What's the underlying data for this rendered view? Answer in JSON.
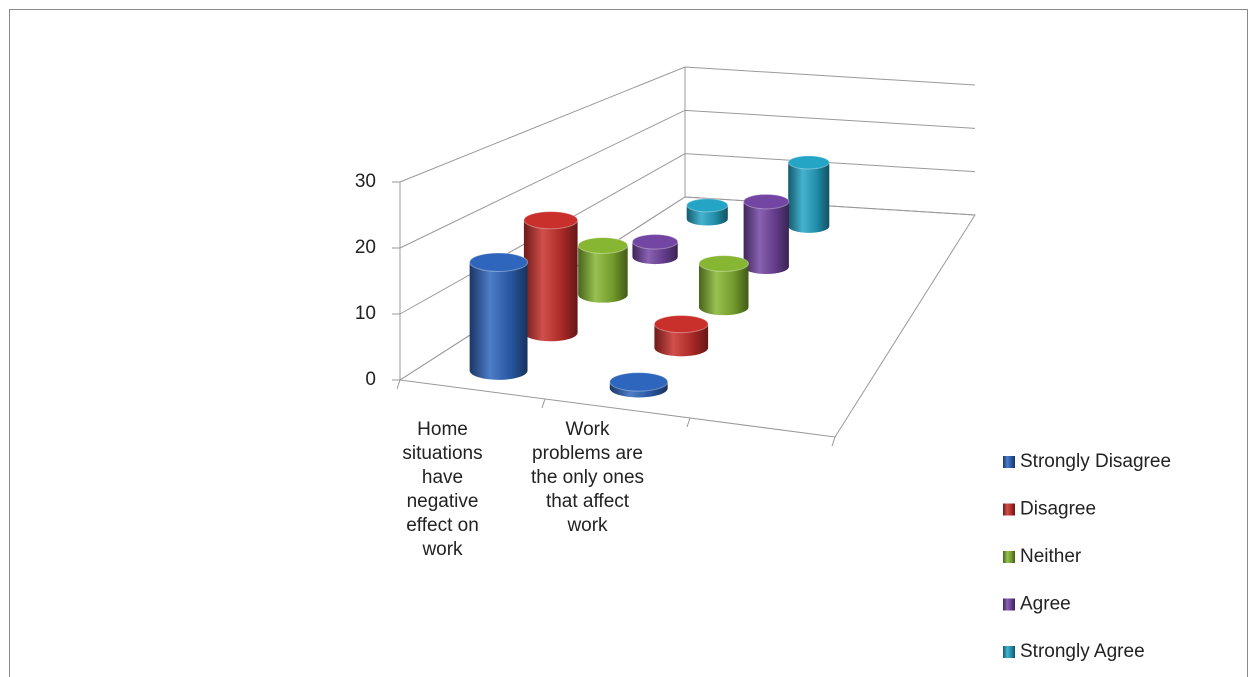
{
  "chart_data": {
    "type": "cylinder3d",
    "categories": [
      "Home situations have negative effect on work",
      "Work problems are the only ones that affect work",
      null
    ],
    "series": [
      {
        "name": "Strongly Disagree",
        "color": "#2f66bd",
        "values": [
          17,
          1,
          null
        ]
      },
      {
        "name": "Disagree",
        "color": "#c9302c",
        "values": [
          19,
          4,
          null
        ]
      },
      {
        "name": "Neither",
        "color": "#86b632",
        "values": [
          9,
          8,
          null
        ]
      },
      {
        "name": "Agree",
        "color": "#7446a4",
        "values": [
          3,
          13,
          null
        ]
      },
      {
        "name": "Strongly Agree",
        "color": "#25a5c6",
        "values": [
          3,
          14,
          null
        ]
      }
    ],
    "ylim": [
      0,
      30
    ],
    "yticks": [
      0,
      10,
      20,
      30
    ],
    "grid": true,
    "legend": "right"
  }
}
